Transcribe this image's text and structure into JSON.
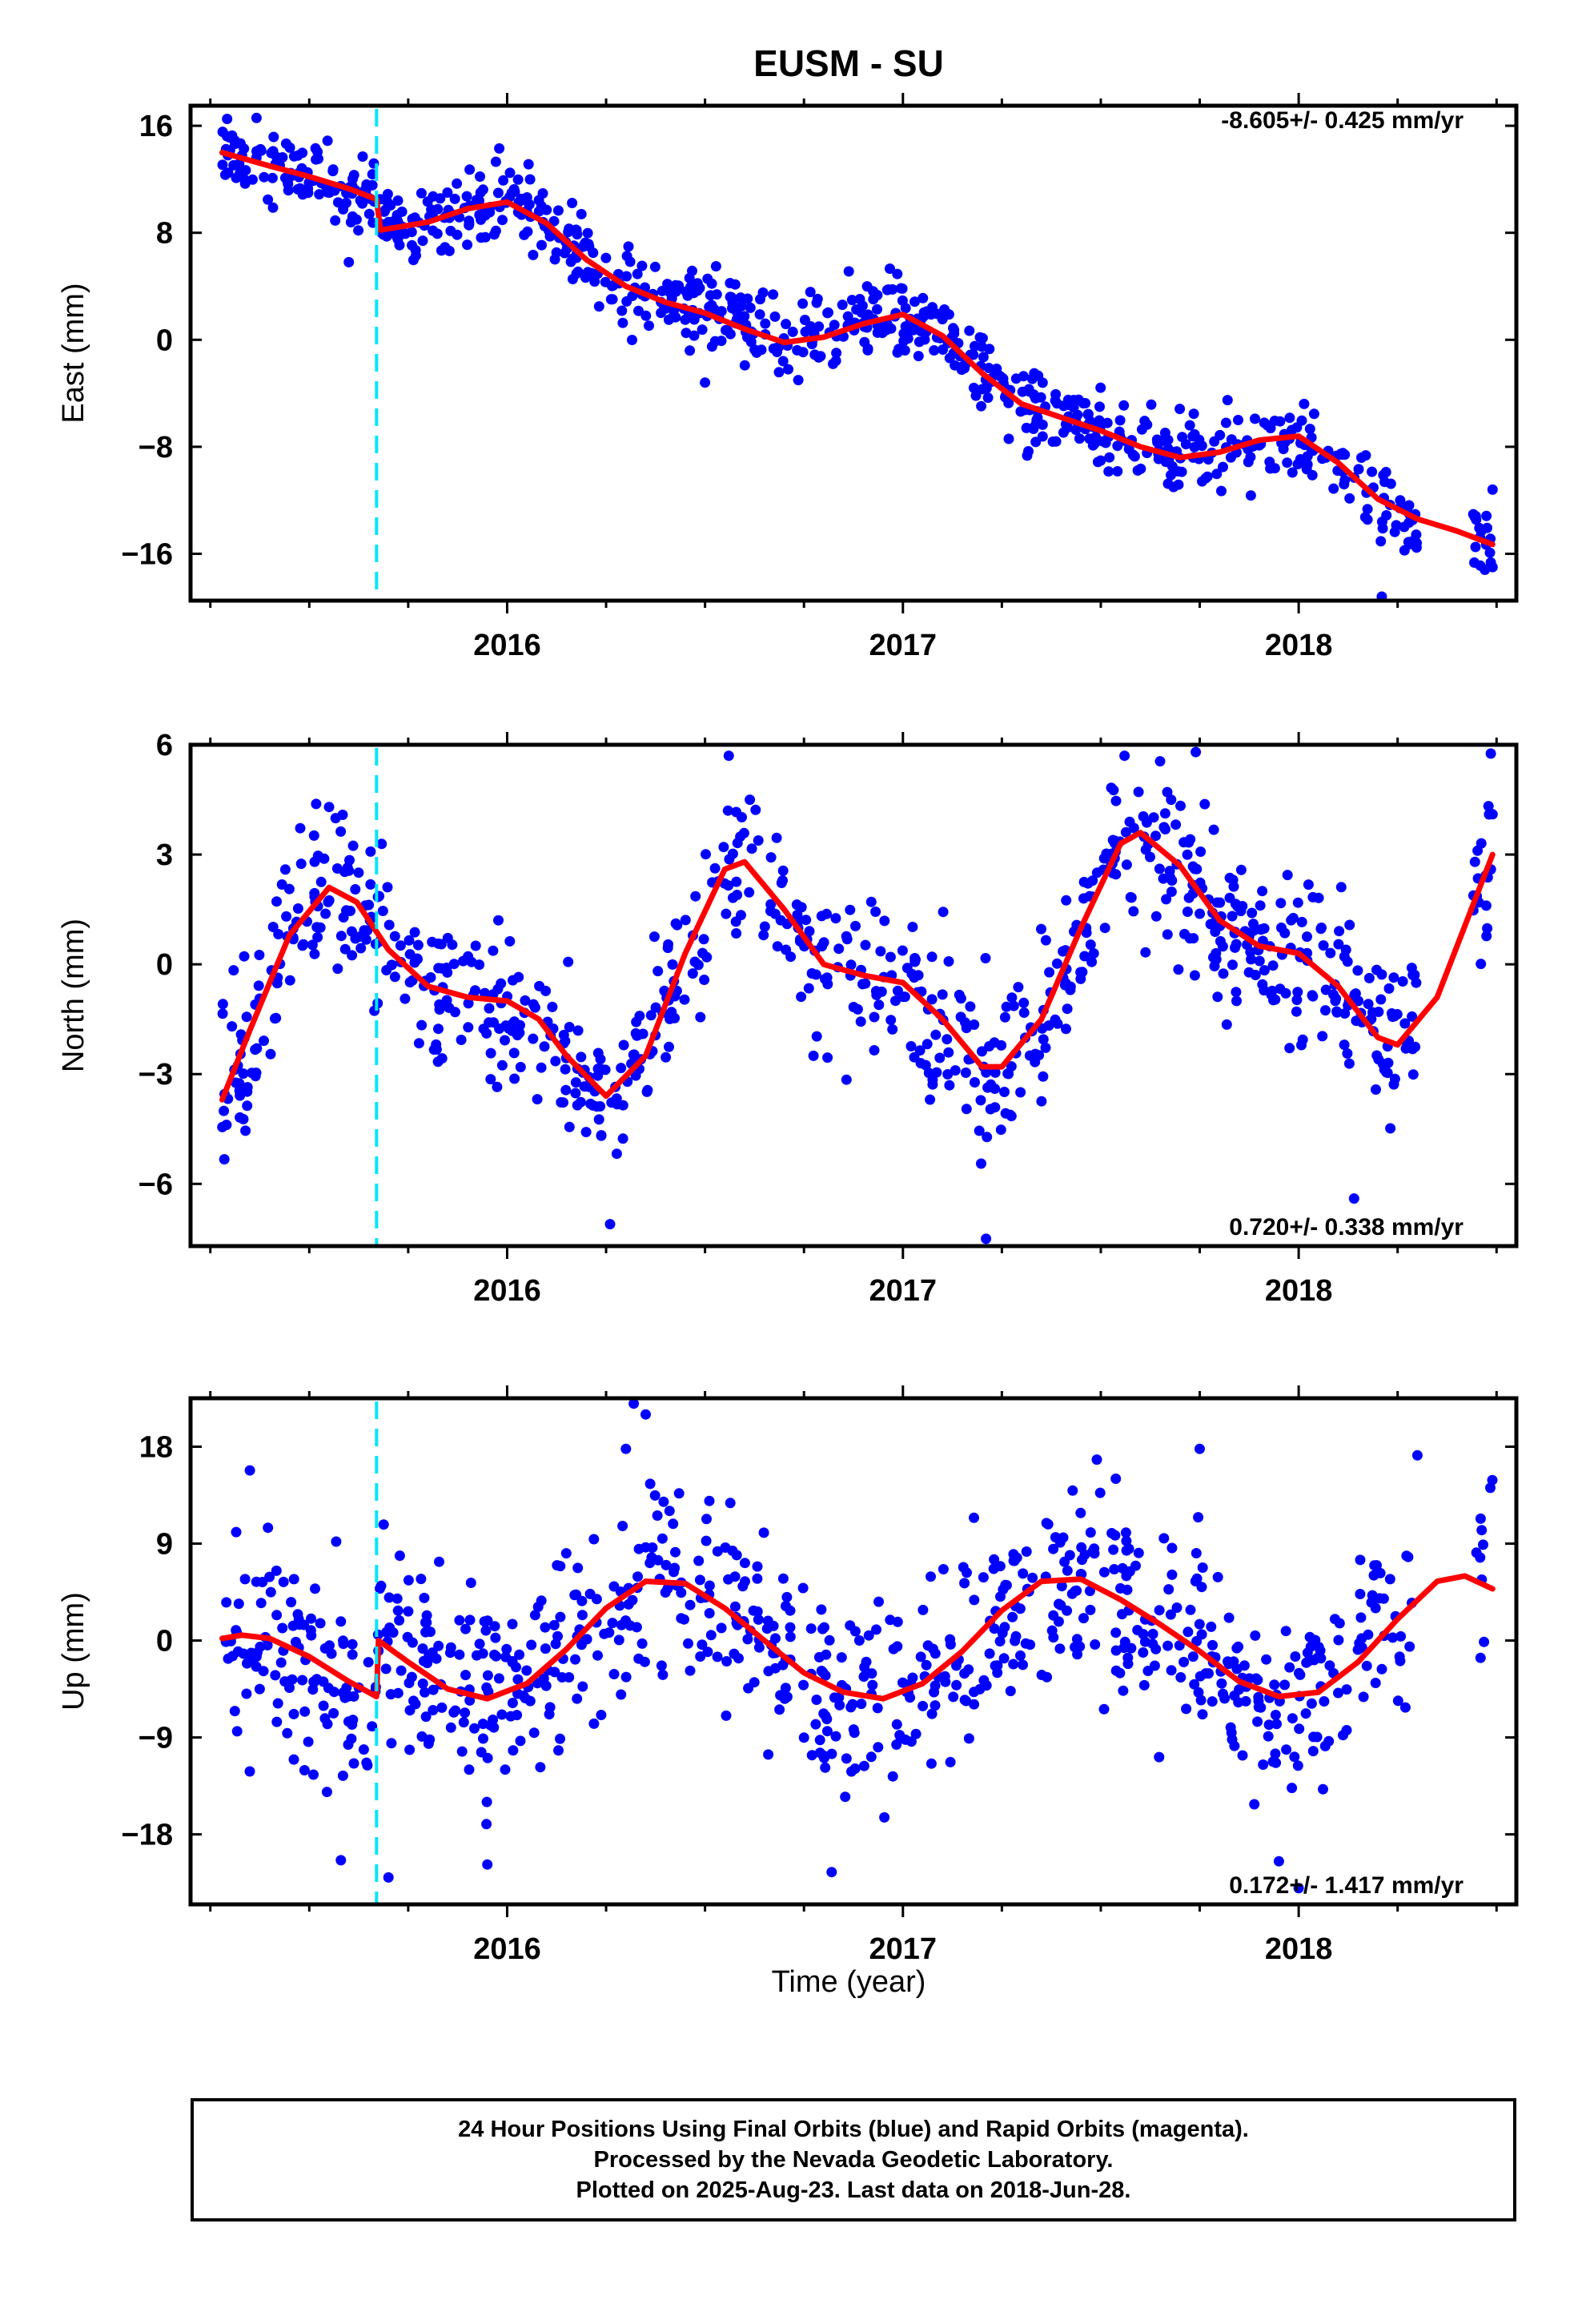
{
  "title": "EUSM - SU",
  "xlabel": "Time (year)",
  "caption": [
    "24 Hour Positions Using Final Orbits (blue) and Rapid Orbits (magenta).",
    "Processed by the Nevada Geodetic Laboratory.",
    "Plotted on 2025-Aug-23. Last data on 2018-Jun-28."
  ],
  "colors": {
    "points": "#0000ff",
    "model": "#ff0000",
    "offset": "#00e5ff"
  },
  "chart_data": [
    {
      "type": "scatter",
      "id": "east",
      "ylabel": "East (mm)",
      "rate_label": "-8.605+/- 0.425 mm/yr",
      "xlim": [
        2015.2,
        2018.55
      ],
      "ylim": [
        -19.5,
        17.5
      ],
      "yticks": [
        16,
        8,
        0,
        -8,
        -16
      ],
      "ytick_labels": [
        "16",
        "8",
        "0",
        "−8",
        "−16"
      ],
      "xticks": [
        2016,
        2017,
        2018
      ],
      "xtick_labels": [
        "2016",
        "2017",
        "2018"
      ],
      "offset_epoch": 2015.67,
      "model": {
        "x": [
          2015.28,
          2015.4,
          2015.5,
          2015.6,
          2015.67,
          2015.68,
          2015.8,
          2015.9,
          2016.0,
          2016.1,
          2016.2,
          2016.3,
          2016.4,
          2016.5,
          2016.6,
          2016.7,
          2016.8,
          2016.9,
          2017.0,
          2017.1,
          2017.2,
          2017.3,
          2017.4,
          2017.5,
          2017.6,
          2017.7,
          2017.8,
          2017.9,
          2018.0,
          2018.1,
          2018.2,
          2018.3,
          2018.4,
          2018.49
        ],
        "y": [
          14.0,
          13.0,
          12.2,
          11.3,
          10.5,
          8.2,
          8.8,
          9.8,
          10.3,
          8.7,
          6.0,
          4.0,
          2.8,
          2.0,
          0.8,
          -0.2,
          0.2,
          1.2,
          1.9,
          0.3,
          -2.5,
          -4.8,
          -5.8,
          -6.8,
          -8.0,
          -8.8,
          -8.4,
          -7.5,
          -7.2,
          -9.2,
          -11.9,
          -13.4,
          -14.3,
          -15.3
        ]
      },
      "points": {
        "n": 870,
        "x_range": [
          2015.28,
          2018.49
        ],
        "x_gap": [
          2018.3,
          2018.44
        ],
        "noise": 1.4,
        "seed": 11,
        "extremes": [
          [
            2015.29,
            17.9
          ],
          [
            2015.98,
            14.3
          ],
          [
            2016.5,
            -3.2
          ],
          [
            2018.21,
            -19.2
          ],
          [
            2018.49,
            -17.0
          ],
          [
            2018.49,
            -11.2
          ],
          [
            2015.6,
            5.8
          ]
        ]
      }
    },
    {
      "type": "scatter",
      "id": "north",
      "ylabel": "North (mm)",
      "rate_label": "0.720+/- 0.338 mm/yr",
      "xlim": [
        2015.2,
        2018.55
      ],
      "ylim": [
        -7.7,
        6.0
      ],
      "yticks": [
        6,
        3,
        0,
        -3,
        -6
      ],
      "ytick_labels": [
        "6",
        "3",
        "0",
        "−3",
        "−6"
      ],
      "xticks": [
        2016,
        2017,
        2018
      ],
      "xtick_labels": [
        "2016",
        "2017",
        "2018"
      ],
      "offset_epoch": 2015.67,
      "model": {
        "x": [
          2015.28,
          2015.35,
          2015.45,
          2015.55,
          2015.62,
          2015.7,
          2015.8,
          2015.9,
          2016.0,
          2016.08,
          2016.15,
          2016.25,
          2016.35,
          2016.45,
          2016.55,
          2016.6,
          2016.7,
          2016.8,
          2016.9,
          2017.0,
          2017.1,
          2017.2,
          2017.25,
          2017.35,
          2017.45,
          2017.55,
          2017.6,
          2017.7,
          2017.8,
          2017.9,
          2018.0,
          2018.1,
          2018.2,
          2018.25,
          2018.35,
          2018.49
        ],
        "y": [
          -3.7,
          -1.8,
          0.8,
          2.1,
          1.7,
          0.4,
          -0.6,
          -0.9,
          -1.0,
          -1.5,
          -2.5,
          -3.6,
          -2.5,
          0.3,
          2.6,
          2.8,
          1.5,
          0.0,
          -0.3,
          -0.5,
          -1.5,
          -2.8,
          -2.8,
          -1.5,
          1.0,
          3.3,
          3.6,
          2.7,
          1.2,
          0.5,
          0.3,
          -0.6,
          -2.0,
          -2.2,
          -0.9,
          3.0
        ]
      },
      "points": {
        "n": 860,
        "x_range": [
          2015.28,
          2018.49
        ],
        "x_gap": [
          2018.3,
          2018.44
        ],
        "noise": 1.15,
        "seed": 23,
        "extremes": [
          [
            2016.26,
            -7.1
          ],
          [
            2017.21,
            -7.5
          ],
          [
            2016.56,
            5.7
          ],
          [
            2017.74,
            5.8
          ],
          [
            2017.56,
            5.7
          ],
          [
            2015.55,
            4.3
          ],
          [
            2018.49,
            4.1
          ],
          [
            2018.14,
            -6.4
          ]
        ]
      }
    },
    {
      "type": "scatter",
      "id": "up",
      "ylabel": "Up (mm)",
      "rate_label": "0.172+/- 1.417 mm/yr",
      "xlim": [
        2015.2,
        2018.55
      ],
      "ylim": [
        -24.5,
        22.5
      ],
      "yticks": [
        18,
        9,
        0,
        -9,
        -18
      ],
      "ytick_labels": [
        "18",
        "9",
        "0",
        "−9",
        "−18"
      ],
      "xticks": [
        2016,
        2017,
        2018
      ],
      "xtick_labels": [
        "2016",
        "2017",
        "2018"
      ],
      "offset_epoch": 2015.67,
      "model": {
        "x": [
          2015.28,
          2015.33,
          2015.4,
          2015.5,
          2015.6,
          2015.67,
          2015.675,
          2015.75,
          2015.85,
          2015.95,
          2016.05,
          2016.15,
          2016.25,
          2016.35,
          2016.45,
          2016.55,
          2016.65,
          2016.75,
          2016.85,
          2016.95,
          2017.05,
          2017.15,
          2017.25,
          2017.35,
          2017.45,
          2017.55,
          2017.65,
          2017.75,
          2017.85,
          2017.95,
          2018.05,
          2018.15,
          2018.25,
          2018.35,
          2018.42,
          2018.49
        ],
        "y": [
          0.2,
          0.5,
          0.2,
          -1.5,
          -3.8,
          -5.2,
          0.0,
          -2.0,
          -4.5,
          -5.4,
          -4.0,
          -0.8,
          3.0,
          5.5,
          5.3,
          3.0,
          0.0,
          -3.0,
          -4.8,
          -5.4,
          -4.0,
          -1.0,
          2.8,
          5.5,
          5.7,
          3.8,
          1.5,
          -1.0,
          -3.8,
          -5.2,
          -4.8,
          -2.0,
          2.0,
          5.5,
          6.0,
          4.8
        ]
      },
      "points": {
        "n": 850,
        "x_range": [
          2015.28,
          2018.49
        ],
        "x_gap": [
          2018.3,
          2018.44
        ],
        "noise": 4.6,
        "seed": 37,
        "extremes": [
          [
            2016.32,
            22.0
          ],
          [
            2016.35,
            21.0
          ],
          [
            2016.3,
            17.8
          ],
          [
            2017.75,
            17.8
          ],
          [
            2015.7,
            -22.0
          ],
          [
            2016.82,
            -21.5
          ],
          [
            2015.95,
            -20.8
          ],
          [
            2015.58,
            -20.4
          ],
          [
            2017.95,
            -20.5
          ],
          [
            2018.0,
            -23.0
          ],
          [
            2018.3,
            17.2
          ],
          [
            2017.49,
            16.8
          ],
          [
            2015.35,
            15.8
          ]
        ]
      }
    }
  ]
}
